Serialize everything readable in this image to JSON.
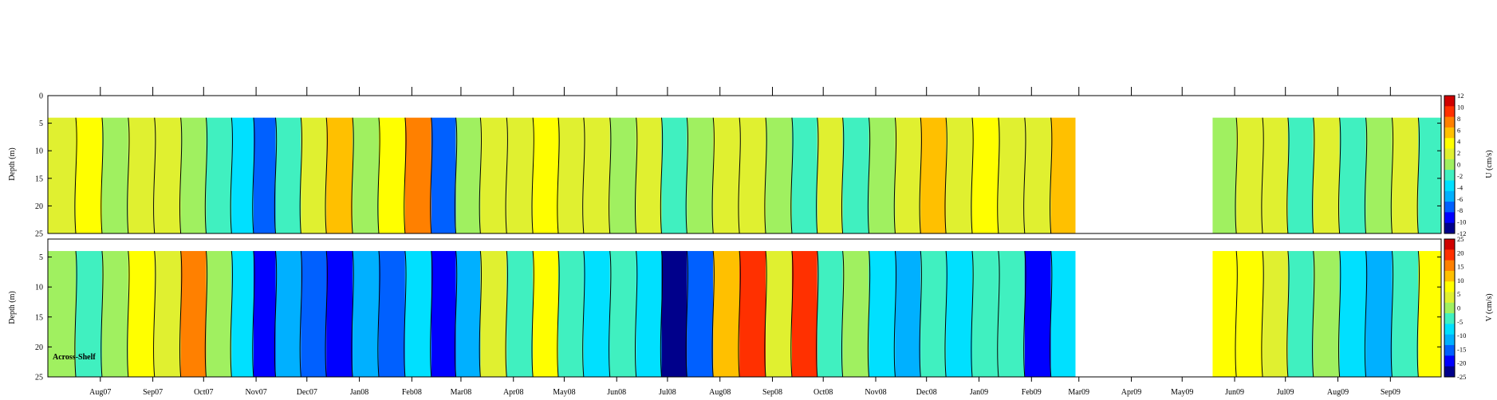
{
  "chart_data": [
    {
      "type": "heatmap",
      "name": "U",
      "ylabel": "Depth (m)",
      "colorbar_label": "U (cm/s)",
      "y_ticks": [
        "0",
        "5",
        "10",
        "15",
        "20",
        "25"
      ],
      "y_range": [
        0,
        25
      ],
      "data_depth_range": [
        4,
        25
      ],
      "colorbar_ticks": [
        "12",
        "10",
        "8",
        "6",
        "4",
        "2",
        "0",
        "-2",
        "-4",
        "-6",
        "-8",
        "-10",
        "-12"
      ],
      "colorbar_range": [
        -12,
        12
      ],
      "x_range": [
        "2007-07-01",
        "2009-10-01"
      ],
      "data_segments": [
        [
          "2007-07-01",
          "2009-02-27"
        ],
        [
          "2009-05-19",
          "2009-10-01"
        ]
      ],
      "stripes": [
        {
          "date": "2007-07-10",
          "value": 2
        },
        {
          "date": "2007-07-25",
          "value": 4
        },
        {
          "date": "2007-08-10",
          "value": 0
        },
        {
          "date": "2007-08-25",
          "value": 1
        },
        {
          "date": "2007-09-10",
          "value": 2
        },
        {
          "date": "2007-09-25",
          "value": 0
        },
        {
          "date": "2007-10-10",
          "value": -2
        },
        {
          "date": "2007-10-25",
          "value": -4
        },
        {
          "date": "2007-11-05",
          "value": -7
        },
        {
          "date": "2007-11-20",
          "value": -1
        },
        {
          "date": "2007-12-05",
          "value": 2
        },
        {
          "date": "2007-12-20",
          "value": 6
        },
        {
          "date": "2008-01-05",
          "value": 0
        },
        {
          "date": "2008-01-20",
          "value": 3
        },
        {
          "date": "2008-02-05",
          "value": 8
        },
        {
          "date": "2008-02-20",
          "value": -7
        },
        {
          "date": "2008-03-05",
          "value": 0
        },
        {
          "date": "2008-03-20",
          "value": 2
        },
        {
          "date": "2008-04-05",
          "value": 1
        },
        {
          "date": "2008-04-20",
          "value": 3
        },
        {
          "date": "2008-05-05",
          "value": 1
        },
        {
          "date": "2008-05-20",
          "value": 2
        },
        {
          "date": "2008-06-05",
          "value": 0
        },
        {
          "date": "2008-06-20",
          "value": 2
        },
        {
          "date": "2008-07-05",
          "value": -2
        },
        {
          "date": "2008-07-20",
          "value": 0
        },
        {
          "date": "2008-08-05",
          "value": 1
        },
        {
          "date": "2008-08-20",
          "value": 2
        },
        {
          "date": "2008-09-05",
          "value": 0
        },
        {
          "date": "2008-09-20",
          "value": -1
        },
        {
          "date": "2008-10-05",
          "value": 1
        },
        {
          "date": "2008-10-20",
          "value": -1
        },
        {
          "date": "2008-11-05",
          "value": 0
        },
        {
          "date": "2008-11-20",
          "value": 1
        },
        {
          "date": "2008-12-05",
          "value": 6
        },
        {
          "date": "2008-12-20",
          "value": 1
        },
        {
          "date": "2009-01-05",
          "value": 3
        },
        {
          "date": "2009-01-20",
          "value": 2
        },
        {
          "date": "2009-02-05",
          "value": 1
        },
        {
          "date": "2009-02-20",
          "value": 5
        },
        {
          "date": "2009-05-25",
          "value": 0
        },
        {
          "date": "2009-06-10",
          "value": 2
        },
        {
          "date": "2009-06-25",
          "value": 1
        },
        {
          "date": "2009-07-10",
          "value": -1
        },
        {
          "date": "2009-07-25",
          "value": 2
        },
        {
          "date": "2009-08-10",
          "value": -2
        },
        {
          "date": "2009-08-25",
          "value": 0
        },
        {
          "date": "2009-09-10",
          "value": 1
        },
        {
          "date": "2009-09-25",
          "value": -1
        }
      ]
    },
    {
      "type": "heatmap",
      "name": "V",
      "ylabel": "Depth (m)",
      "colorbar_label": "V (cm/s)",
      "annotation": "Across-Shelf",
      "y_ticks": [
        "5",
        "10",
        "15",
        "20",
        "25"
      ],
      "y_range": [
        2,
        25
      ],
      "data_depth_range": [
        4,
        25
      ],
      "colorbar_ticks": [
        "25",
        "20",
        "15",
        "10",
        "5",
        "0",
        "-5",
        "-10",
        "-15",
        "-20",
        "-25"
      ],
      "colorbar_range": [
        -25,
        25
      ],
      "x_range": [
        "2007-07-01",
        "2009-10-01"
      ],
      "data_segments": [
        [
          "2007-07-01",
          "2009-02-27"
        ],
        [
          "2009-05-19",
          "2009-10-01"
        ]
      ],
      "stripes": [
        {
          "date": "2007-07-10",
          "value": 0
        },
        {
          "date": "2007-07-25",
          "value": -5
        },
        {
          "date": "2007-08-10",
          "value": 0
        },
        {
          "date": "2007-08-25",
          "value": 8
        },
        {
          "date": "2007-09-10",
          "value": 2
        },
        {
          "date": "2007-09-25",
          "value": 15
        },
        {
          "date": "2007-10-10",
          "value": 0
        },
        {
          "date": "2007-10-25",
          "value": -8
        },
        {
          "date": "2007-11-05",
          "value": -18
        },
        {
          "date": "2007-11-20",
          "value": -10
        },
        {
          "date": "2007-12-05",
          "value": -14
        },
        {
          "date": "2007-12-20",
          "value": -20
        },
        {
          "date": "2008-01-05",
          "value": -10
        },
        {
          "date": "2008-01-20",
          "value": -16
        },
        {
          "date": "2008-02-05",
          "value": -8
        },
        {
          "date": "2008-02-20",
          "value": -18
        },
        {
          "date": "2008-03-05",
          "value": -12
        },
        {
          "date": "2008-03-20",
          "value": 5
        },
        {
          "date": "2008-04-05",
          "value": -4
        },
        {
          "date": "2008-04-20",
          "value": 8
        },
        {
          "date": "2008-05-05",
          "value": -2
        },
        {
          "date": "2008-05-20",
          "value": -6
        },
        {
          "date": "2008-06-05",
          "value": -3
        },
        {
          "date": "2008-06-20",
          "value": -8
        },
        {
          "date": "2008-07-05",
          "value": -22
        },
        {
          "date": "2008-07-20",
          "value": -14
        },
        {
          "date": "2008-08-05",
          "value": 10
        },
        {
          "date": "2008-08-20",
          "value": 18
        },
        {
          "date": "2008-09-05",
          "value": 2
        },
        {
          "date": "2008-09-20",
          "value": 19
        },
        {
          "date": "2008-10-05",
          "value": -2
        },
        {
          "date": "2008-10-20",
          "value": 0
        },
        {
          "date": "2008-11-05",
          "value": -6
        },
        {
          "date": "2008-11-20",
          "value": -12
        },
        {
          "date": "2008-12-05",
          "value": -4
        },
        {
          "date": "2008-12-20",
          "value": -8
        },
        {
          "date": "2009-01-05",
          "value": -5
        },
        {
          "date": "2009-01-20",
          "value": -2
        },
        {
          "date": "2009-02-05",
          "value": -21
        },
        {
          "date": "2009-02-20",
          "value": -6
        },
        {
          "date": "2009-05-25",
          "value": 9
        },
        {
          "date": "2009-06-10",
          "value": 6
        },
        {
          "date": "2009-06-25",
          "value": 2
        },
        {
          "date": "2009-07-10",
          "value": -2
        },
        {
          "date": "2009-07-25",
          "value": 0
        },
        {
          "date": "2009-08-10",
          "value": -6
        },
        {
          "date": "2009-08-25",
          "value": -12
        },
        {
          "date": "2009-09-10",
          "value": -4
        },
        {
          "date": "2009-09-25",
          "value": 9
        }
      ]
    }
  ],
  "x_tick_labels": [
    "Aug07",
    "Sep07",
    "Oct07",
    "Nov07",
    "Dec07",
    "Jan08",
    "Feb08",
    "Mar08",
    "Apr08",
    "May08",
    "Jun08",
    "Jul08",
    "Aug08",
    "Sep08",
    "Oct08",
    "Nov08",
    "Dec08",
    "Jan09",
    "Feb09",
    "Mar09",
    "Apr09",
    "May09",
    "Jun09",
    "Jul09",
    "Aug09",
    "Sep09"
  ],
  "x_tick_dates": [
    "2007-08-01",
    "2007-09-01",
    "2007-10-01",
    "2007-11-01",
    "2007-12-01",
    "2008-01-01",
    "2008-02-01",
    "2008-03-01",
    "2008-04-01",
    "2008-05-01",
    "2008-06-01",
    "2008-07-01",
    "2008-08-01",
    "2008-09-01",
    "2008-10-01",
    "2008-11-01",
    "2008-12-01",
    "2009-01-01",
    "2009-02-01",
    "2009-03-01",
    "2009-04-01",
    "2009-05-01",
    "2009-06-01",
    "2009-07-01",
    "2009-08-01",
    "2009-09-01"
  ],
  "colormap": [
    "#00008b",
    "#0000ff",
    "#0060ff",
    "#00b0ff",
    "#00e0ff",
    "#40f0c0",
    "#a0f060",
    "#e0f030",
    "#ffff00",
    "#ffc000",
    "#ff8000",
    "#ff3000",
    "#d00000"
  ]
}
